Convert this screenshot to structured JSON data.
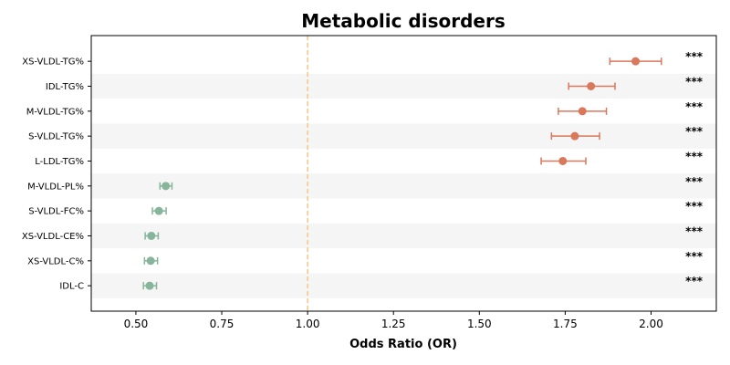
{
  "chart_data": {
    "type": "forest",
    "title": "Metabolic disorders",
    "xlabel": "Odds Ratio (OR)",
    "xlim": [
      0.37,
      2.19
    ],
    "xticks": [
      0.5,
      0.75,
      1.0,
      1.25,
      1.5,
      1.75,
      2.0
    ],
    "xtick_labels": [
      "0.50",
      "0.75",
      "1.00",
      "1.25",
      "1.50",
      "1.75",
      "2.00"
    ],
    "reference_line": 1.0,
    "row_striping": true,
    "colors": {
      "risk": "#d9785b",
      "protective": "#86b59b",
      "reference": "#f5c57f",
      "stripe": "#f5f5f5"
    },
    "rows": [
      {
        "label": "XS-VLDL-TG%",
        "or": 1.955,
        "lo": 1.88,
        "hi": 2.03,
        "sig": "***",
        "group": "risk"
      },
      {
        "label": "IDL-TG%",
        "or": 1.825,
        "lo": 1.76,
        "hi": 1.895,
        "sig": "***",
        "group": "risk"
      },
      {
        "label": "M-VLDL-TG%",
        "or": 1.8,
        "lo": 1.73,
        "hi": 1.87,
        "sig": "***",
        "group": "risk"
      },
      {
        "label": "S-VLDL-TG%",
        "or": 1.778,
        "lo": 1.71,
        "hi": 1.85,
        "sig": "***",
        "group": "risk"
      },
      {
        "label": "L-LDL-TG%",
        "or": 1.743,
        "lo": 1.68,
        "hi": 1.81,
        "sig": "***",
        "group": "risk"
      },
      {
        "label": "M-VLDL-PL%",
        "or": 0.587,
        "lo": 0.57,
        "hi": 0.605,
        "sig": "***",
        "group": "protective"
      },
      {
        "label": "S-VLDL-FC%",
        "or": 0.567,
        "lo": 0.548,
        "hi": 0.588,
        "sig": "***",
        "group": "protective"
      },
      {
        "label": "XS-VLDL-CE%",
        "or": 0.545,
        "lo": 0.527,
        "hi": 0.565,
        "sig": "***",
        "group": "protective"
      },
      {
        "label": "XS-VLDL-C%",
        "or": 0.543,
        "lo": 0.525,
        "hi": 0.563,
        "sig": "***",
        "group": "protective"
      },
      {
        "label": "IDL-C",
        "or": 0.54,
        "lo": 0.522,
        "hi": 0.56,
        "sig": "***",
        "group": "protective"
      }
    ]
  }
}
